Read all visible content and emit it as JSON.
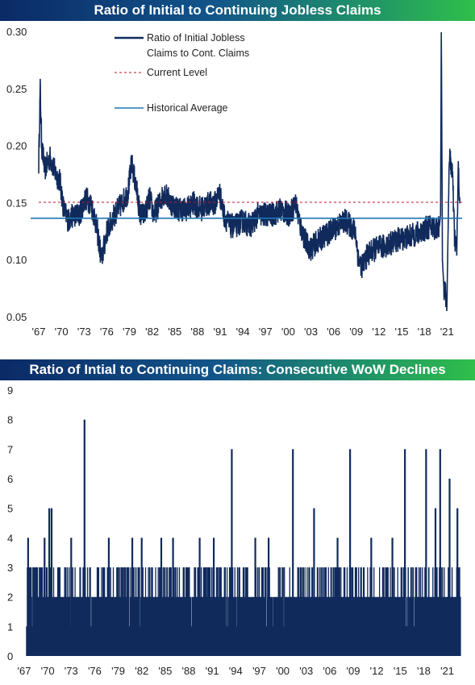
{
  "charts": [
    {
      "title": "Ratio of Initial to Continuing Jobless Claims",
      "legend": {
        "series_label_1": "Ratio of Initial Jobless",
        "series_label_2": "Claims to Cont. Claims",
        "current_label": "Current Level",
        "average_label": "Historical Average"
      }
    },
    {
      "title": "Ratio of Intial to Continuing Claims: Consecutive WoW Declines"
    }
  ],
  "colors": {
    "navy": "#102a5c",
    "average": "#1f77b4",
    "current": "#c0172a"
  },
  "chart_data": [
    {
      "type": "line",
      "title": "Ratio of Initial to Continuing Jobless Claims",
      "ylim": [
        0.05,
        0.3
      ],
      "yticks": [
        "0.30",
        "0.25",
        "0.20",
        "0.15",
        "0.10",
        "0.05"
      ],
      "ytick_values": [
        0.3,
        0.25,
        0.2,
        0.15,
        0.1,
        0.05
      ],
      "xlim": [
        1967.0,
        2023.0
      ],
      "xticks": [
        "'67",
        "'70",
        "'73",
        "'76",
        "'79",
        "'82",
        "'85",
        "'88",
        "'91",
        "'94",
        "'97",
        "'00",
        "'03",
        "'06",
        "'09",
        "'12",
        "'15",
        "'18",
        "'21"
      ],
      "xtick_years": [
        1967,
        1970,
        1973,
        1976,
        1979,
        1982,
        1985,
        1988,
        1991,
        1994,
        1997,
        2000,
        2003,
        2006,
        2009,
        2012,
        2015,
        2018,
        2021
      ],
      "legend_position": "top-center",
      "grid": false,
      "series": [
        {
          "name": "Ratio of Initial Jobless Claims to Cont. Claims",
          "x": [
            1967.0,
            1967.2,
            1967.4,
            1967.8,
            1968.5,
            1969.3,
            1969.8,
            1970.3,
            1970.9,
            1971.6,
            1972.4,
            1973.2,
            1973.9,
            1974.5,
            1975.0,
            1975.3,
            1976.0,
            1977.0,
            1978.0,
            1978.8,
            1979.3,
            1980.0,
            1980.4,
            1981.0,
            1981.7,
            1982.2,
            1983.0,
            1983.6,
            1984.5,
            1985.5,
            1986.5,
            1987.5,
            1988.5,
            1989.5,
            1990.3,
            1990.9,
            1991.5,
            1992.3,
            1993.0,
            1994.0,
            1995.0,
            1996.0,
            1997.0,
            1998.0,
            1999.0,
            2000.0,
            2000.6,
            2001.0,
            2001.6,
            2002.4,
            2003.0,
            2003.6,
            2004.5,
            2005.5,
            2006.5,
            2007.5,
            2008.3,
            2008.9,
            2009.3,
            2009.8,
            2010.5,
            2011.5,
            2012.5,
            2013.5,
            2014.5,
            2015.5,
            2016.5,
            2017.5,
            2018.2,
            2018.8,
            2019.5,
            2020.0,
            2020.15,
            2020.25,
            2020.4,
            2020.6,
            2020.8,
            2021.0,
            2021.3,
            2021.7,
            2022.0,
            2022.3,
            2022.5,
            2022.7
          ],
          "values": [
            0.185,
            0.25,
            0.2,
            0.18,
            0.19,
            0.175,
            0.17,
            0.145,
            0.135,
            0.14,
            0.14,
            0.155,
            0.15,
            0.135,
            0.115,
            0.1,
            0.125,
            0.14,
            0.15,
            0.16,
            0.185,
            0.16,
            0.14,
            0.14,
            0.155,
            0.14,
            0.15,
            0.16,
            0.15,
            0.145,
            0.145,
            0.15,
            0.145,
            0.15,
            0.15,
            0.16,
            0.14,
            0.13,
            0.13,
            0.135,
            0.13,
            0.14,
            0.14,
            0.14,
            0.145,
            0.14,
            0.145,
            0.15,
            0.13,
            0.115,
            0.11,
            0.115,
            0.12,
            0.125,
            0.13,
            0.135,
            0.13,
            0.125,
            0.1,
            0.095,
            0.105,
            0.11,
            0.112,
            0.115,
            0.118,
            0.12,
            0.122,
            0.125,
            0.128,
            0.13,
            0.128,
            0.13,
            0.14,
            0.3,
            0.1,
            0.075,
            0.07,
            0.065,
            0.19,
            0.18,
            0.12,
            0.11,
            0.18,
            0.15
          ]
        }
      ],
      "current_level": 0.151,
      "historical_average": 0.137
    },
    {
      "type": "bar",
      "title": "Ratio of Intial to Continuing Claims: Consecutive WoW Declines",
      "ylim": [
        0,
        9
      ],
      "yticks": [
        "9",
        "8",
        "7",
        "6",
        "5",
        "4",
        "3",
        "2",
        "1",
        "0"
      ],
      "ytick_values": [
        9,
        8,
        7,
        6,
        5,
        4,
        3,
        2,
        1,
        0
      ],
      "xlim": [
        1967.0,
        2023.0
      ],
      "xticks": [
        "'67",
        "'70",
        "'73",
        "'76",
        "'79",
        "'82",
        "'85",
        "'88",
        "'91",
        "'94",
        "'97",
        "'00",
        "'03",
        "'06",
        "'09",
        "'12",
        "'15",
        "'18",
        "'21"
      ],
      "xtick_years": [
        1967,
        1970,
        1973,
        1976,
        1979,
        1982,
        1985,
        1988,
        1991,
        1994,
        1997,
        2000,
        2003,
        2006,
        2009,
        2012,
        2015,
        2018,
        2021
      ],
      "grid": false,
      "spikes": [
        {
          "x": 1967.5,
          "value": 4
        },
        {
          "x": 1968.3,
          "value": 3
        },
        {
          "x": 1969.6,
          "value": 4
        },
        {
          "x": 1970.2,
          "value": 5
        },
        {
          "x": 1970.5,
          "value": 5
        },
        {
          "x": 1971.4,
          "value": 3
        },
        {
          "x": 1973.0,
          "value": 4
        },
        {
          "x": 1974.7,
          "value": 8
        },
        {
          "x": 1976.4,
          "value": 3
        },
        {
          "x": 1977.8,
          "value": 4
        },
        {
          "x": 1979.5,
          "value": 3
        },
        {
          "x": 1980.8,
          "value": 4
        },
        {
          "x": 1982.0,
          "value": 4
        },
        {
          "x": 1983.3,
          "value": 3
        },
        {
          "x": 1984.5,
          "value": 4
        },
        {
          "x": 1986.0,
          "value": 4
        },
        {
          "x": 1987.7,
          "value": 3
        },
        {
          "x": 1989.4,
          "value": 4
        },
        {
          "x": 1991.2,
          "value": 4
        },
        {
          "x": 1992.6,
          "value": 3
        },
        {
          "x": 1993.5,
          "value": 7
        },
        {
          "x": 1995.0,
          "value": 3
        },
        {
          "x": 1996.5,
          "value": 4
        },
        {
          "x": 1998.2,
          "value": 4
        },
        {
          "x": 1999.5,
          "value": 3
        },
        {
          "x": 2001.3,
          "value": 7
        },
        {
          "x": 2002.6,
          "value": 3
        },
        {
          "x": 2004.0,
          "value": 5
        },
        {
          "x": 2005.5,
          "value": 3
        },
        {
          "x": 2007.0,
          "value": 4
        },
        {
          "x": 2008.6,
          "value": 7
        },
        {
          "x": 2010.0,
          "value": 3
        },
        {
          "x": 2011.3,
          "value": 4
        },
        {
          "x": 2012.8,
          "value": 3
        },
        {
          "x": 2014.0,
          "value": 4
        },
        {
          "x": 2015.6,
          "value": 7
        },
        {
          "x": 2017.0,
          "value": 3
        },
        {
          "x": 2018.3,
          "value": 7
        },
        {
          "x": 2019.5,
          "value": 5
        },
        {
          "x": 2020.1,
          "value": 7
        },
        {
          "x": 2021.3,
          "value": 6
        },
        {
          "x": 2022.3,
          "value": 5
        }
      ]
    }
  ]
}
